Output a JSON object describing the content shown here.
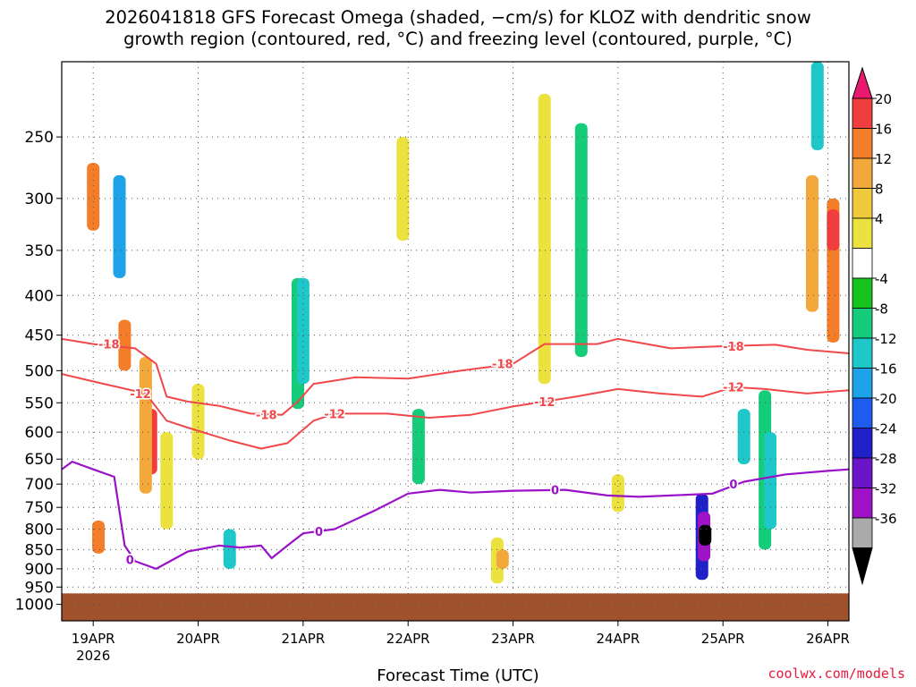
{
  "title": {
    "line1": "2026041818 GFS Forecast Omega (shaded, −cm/s) for KLOZ with dendritic snow",
    "line2": "growth region (contoured, red, °C) and freezing level (contoured, purple, °C)"
  },
  "credit": "coolwx.com/models",
  "chart_data": {
    "type": "heatmap",
    "xlabel": "Forecast Time (UTC)",
    "ylabel": "",
    "y_axis": {
      "reverse": true,
      "scale": "log",
      "range": [
        200,
        1050
      ],
      "unit": "hPa",
      "ticks": [
        "250",
        "300",
        "350",
        "400",
        "450",
        "500",
        "550",
        "600",
        "650",
        "700",
        "750",
        "800",
        "850",
        "900",
        "950",
        "1000"
      ]
    },
    "x_axis": {
      "range": [
        -0.3,
        7.2
      ],
      "unit": "days from 19 Apr 00Z",
      "ticks": [
        {
          "value": 0,
          "label": "19APR",
          "sublabel": "2026"
        },
        {
          "value": 1,
          "label": "20APR"
        },
        {
          "value": 2,
          "label": "21APR"
        },
        {
          "value": 3,
          "label": "22APR"
        },
        {
          "value": 4,
          "label": "23APR"
        },
        {
          "value": 5,
          "label": "24APR"
        },
        {
          "value": 6,
          "label": "25APR"
        },
        {
          "value": 7,
          "label": "26APR"
        }
      ]
    },
    "colorbar": {
      "labels": [
        "20",
        "16",
        "12",
        "8",
        "4",
        "-4",
        "-8",
        "-12",
        "-16",
        "-20",
        "-24",
        "-28",
        "-32",
        "-36"
      ],
      "colors": [
        "#e8196e",
        "#f03e3e",
        "#f47d2a",
        "#f3a83b",
        "#f0c93d",
        "#ebe23f",
        "#ffffff",
        "#16c21c",
        "#14cc7a",
        "#1ec8c8",
        "#1ea2e8",
        "#1e5cf0",
        "#2020c8",
        "#6a16c8",
        "#a012c8",
        "#aaaaaa",
        "#000000"
      ]
    },
    "omega_cells": [
      {
        "t": 0.0,
        "p0": 270,
        "p1": 330,
        "v": 12
      },
      {
        "t": 0.05,
        "p0": 780,
        "p1": 860,
        "v": 12
      },
      {
        "t": 0.25,
        "p0": 280,
        "p1": 380,
        "v": -16
      },
      {
        "t": 0.3,
        "p0": 430,
        "p1": 500,
        "v": 12
      },
      {
        "t": 0.55,
        "p0": 560,
        "p1": 680,
        "v": 16
      },
      {
        "t": 0.5,
        "p0": 480,
        "p1": 720,
        "v": 8
      },
      {
        "t": 0.7,
        "p0": 600,
        "p1": 800,
        "v": 4
      },
      {
        "t": 1.0,
        "p0": 520,
        "p1": 650,
        "v": 4
      },
      {
        "t": 1.3,
        "p0": 800,
        "p1": 900,
        "v": -12
      },
      {
        "t": 1.95,
        "p0": 380,
        "p1": 560,
        "v": -8
      },
      {
        "t": 2.0,
        "p0": 380,
        "p1": 520,
        "v": -12
      },
      {
        "t": 2.95,
        "p0": 250,
        "p1": 340,
        "v": 4
      },
      {
        "t": 3.1,
        "p0": 560,
        "p1": 700,
        "v": -8
      },
      {
        "t": 3.85,
        "p0": 820,
        "p1": 940,
        "v": 4
      },
      {
        "t": 3.9,
        "p0": 850,
        "p1": 900,
        "v": 8
      },
      {
        "t": 4.3,
        "p0": 220,
        "p1": 520,
        "v": 4
      },
      {
        "t": 4.65,
        "p0": 240,
        "p1": 480,
        "v": -8
      },
      {
        "t": 5.0,
        "p0": 680,
        "p1": 760,
        "v": 4
      },
      {
        "t": 5.8,
        "p0": 720,
        "p1": 930,
        "v": -24
      },
      {
        "t": 5.82,
        "p0": 760,
        "p1": 880,
        "v": -32
      },
      {
        "t": 5.83,
        "p0": 790,
        "p1": 840,
        "v": -36
      },
      {
        "t": 6.2,
        "p0": 560,
        "p1": 660,
        "v": -12
      },
      {
        "t": 6.4,
        "p0": 530,
        "p1": 850,
        "v": -8
      },
      {
        "t": 6.45,
        "p0": 600,
        "p1": 800,
        "v": -12
      },
      {
        "t": 6.85,
        "p0": 280,
        "p1": 420,
        "v": 8
      },
      {
        "t": 7.05,
        "p0": 300,
        "p1": 460,
        "v": 12
      },
      {
        "t": 7.05,
        "p0": 310,
        "p1": 350,
        "v": 16
      },
      {
        "t": 6.9,
        "p0": 200,
        "p1": 260,
        "v": -12
      }
    ],
    "contours": [
      {
        "name": "-18C",
        "color": "#f0484a",
        "label": "-18",
        "points": [
          [
            -0.3,
            455
          ],
          [
            0.0,
            462
          ],
          [
            0.4,
            468
          ],
          [
            0.6,
            490
          ],
          [
            0.7,
            540
          ],
          [
            0.9,
            548
          ],
          [
            1.2,
            555
          ],
          [
            1.5,
            568
          ],
          [
            1.8,
            570
          ],
          [
            1.95,
            548
          ],
          [
            2.1,
            520
          ],
          [
            2.5,
            510
          ],
          [
            3.0,
            512
          ],
          [
            3.5,
            500
          ],
          [
            4.0,
            490
          ],
          [
            4.3,
            462
          ],
          [
            4.8,
            462
          ],
          [
            5.0,
            455
          ],
          [
            5.5,
            468
          ],
          [
            6.0,
            465
          ],
          [
            6.5,
            463
          ],
          [
            6.8,
            470
          ],
          [
            7.2,
            475
          ]
        ],
        "label_at": [
          [
            0.15,
            462
          ],
          [
            1.65,
            570
          ],
          [
            3.9,
            490
          ],
          [
            6.1,
            465
          ]
        ]
      },
      {
        "name": "-12C",
        "color": "#f0484a",
        "label": "-12",
        "points": [
          [
            -0.3,
            505
          ],
          [
            0.1,
            520
          ],
          [
            0.5,
            535
          ],
          [
            0.7,
            580
          ],
          [
            0.9,
            592
          ],
          [
            1.3,
            615
          ],
          [
            1.6,
            630
          ],
          [
            1.85,
            620
          ],
          [
            2.1,
            580
          ],
          [
            2.3,
            568
          ],
          [
            2.8,
            568
          ],
          [
            3.2,
            575
          ],
          [
            3.6,
            570
          ],
          [
            4.0,
            556
          ],
          [
            4.3,
            548
          ],
          [
            4.6,
            540
          ],
          [
            5.0,
            528
          ],
          [
            5.4,
            535
          ],
          [
            5.8,
            540
          ],
          [
            6.1,
            525
          ],
          [
            6.4,
            528
          ],
          [
            6.8,
            535
          ],
          [
            7.2,
            530
          ]
        ],
        "label_at": [
          [
            0.45,
            535
          ],
          [
            2.3,
            568
          ],
          [
            4.3,
            548
          ],
          [
            6.1,
            525
          ]
        ]
      },
      {
        "name": "0C",
        "color": "#9a12c8",
        "label": "0",
        "points": [
          [
            -0.3,
            670
          ],
          [
            -0.2,
            655
          ],
          [
            0.0,
            670
          ],
          [
            0.2,
            685
          ],
          [
            0.3,
            840
          ],
          [
            0.4,
            880
          ],
          [
            0.6,
            900
          ],
          [
            0.9,
            855
          ],
          [
            1.2,
            840
          ],
          [
            1.4,
            845
          ],
          [
            1.6,
            840
          ],
          [
            1.7,
            872
          ],
          [
            1.85,
            840
          ],
          [
            2.0,
            810
          ],
          [
            2.3,
            800
          ],
          [
            2.7,
            755
          ],
          [
            3.0,
            720
          ],
          [
            3.3,
            712
          ],
          [
            3.6,
            718
          ],
          [
            4.0,
            714
          ],
          [
            4.5,
            712
          ],
          [
            4.9,
            724
          ],
          [
            5.2,
            727
          ],
          [
            5.5,
            724
          ],
          [
            5.9,
            720
          ],
          [
            6.2,
            695
          ],
          [
            6.6,
            680
          ],
          [
            7.0,
            673
          ],
          [
            7.2,
            670
          ]
        ],
        "label_at": [
          [
            0.35,
            875
          ],
          [
            2.15,
            805
          ],
          [
            4.4,
            712
          ],
          [
            6.1,
            700
          ]
        ]
      }
    ]
  }
}
